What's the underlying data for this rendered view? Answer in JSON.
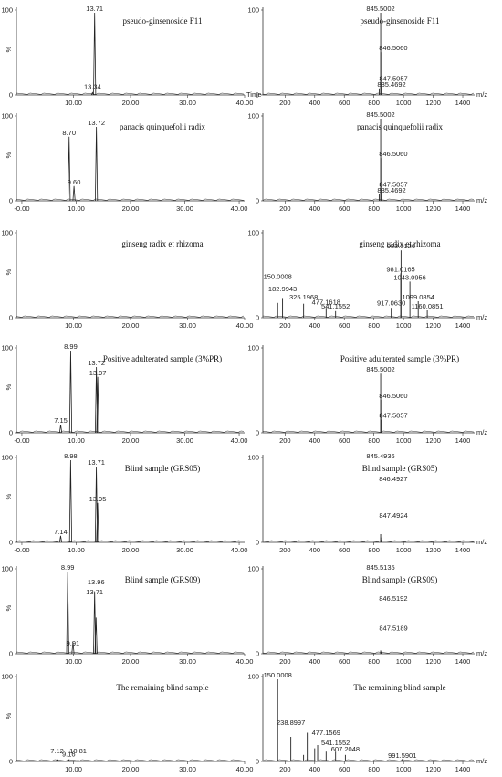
{
  "figure": {
    "chart_data": [
      {
        "type": "line",
        "row": 0,
        "side": "left",
        "title": "pseudo-ginsenoside F11",
        "xlabel": "Time",
        "ylabel": "%",
        "xlim": [
          0,
          40
        ],
        "ylim": [
          0,
          100
        ],
        "xticks": [
          "10.00",
          "20.00",
          "30.00",
          "40.00"
        ],
        "yticks": [
          "0",
          "100"
        ],
        "series": [
          {
            "x": [
              13.34,
              13.71
            ],
            "values": [
              3,
              100
            ]
          }
        ],
        "peak_labels": [
          {
            "x": 13.71,
            "y": 100,
            "text": "13.71"
          },
          {
            "x": 13.34,
            "y": 5,
            "text": "13.34"
          }
        ]
      },
      {
        "type": "bar",
        "row": 0,
        "side": "right",
        "title": "pseudo-ginsenoside F11",
        "xlabel": "m/z",
        "ylabel": "",
        "xlim": [
          50,
          1480
        ],
        "ylim": [
          0,
          100
        ],
        "xticks": [
          "200",
          "400",
          "600",
          "800",
          "1000",
          "1200",
          "1400"
        ],
        "yticks": [
          "0",
          "100"
        ],
        "series": [
          {
            "x": [
              835.4692,
              845.5002,
              846.506,
              847.5057
            ],
            "values": [
              8,
              100,
              52,
              15
            ]
          }
        ],
        "peak_labels": [
          {
            "x": 845.5002,
            "y": 100,
            "text": "845.5002"
          },
          {
            "x": 846.506,
            "y": 52,
            "text": "846.5060"
          },
          {
            "x": 847.5057,
            "y": 15,
            "text": "847.5057"
          },
          {
            "x": 835.4692,
            "y": 8,
            "text": "835.4692"
          }
        ]
      },
      {
        "type": "line",
        "row": 1,
        "side": "left",
        "title": "panacis quinquefolii radix",
        "xlabel": "",
        "ylabel": "%",
        "xlim": [
          -1,
          41
        ],
        "ylim": [
          0,
          100
        ],
        "xticks": [
          "-0.00",
          "10.00",
          "20.00",
          "30.00",
          "40.00"
        ],
        "yticks": [
          "0",
          "100"
        ],
        "series": [
          {
            "x": [
              8.7,
              9.6,
              13.72
            ],
            "values": [
              78,
              18,
              90
            ]
          }
        ],
        "peak_labels": [
          {
            "x": 8.7,
            "y": 78,
            "text": "8.70"
          },
          {
            "x": 13.72,
            "y": 90,
            "text": "13.72"
          },
          {
            "x": 9.6,
            "y": 18,
            "text": "9.60"
          }
        ]
      },
      {
        "type": "bar",
        "row": 1,
        "side": "right",
        "title": "panacis quinquefolii radix",
        "xlabel": "m/z",
        "ylabel": "",
        "xlim": [
          50,
          1480
        ],
        "ylim": [
          0,
          100
        ],
        "xticks": [
          "200",
          "400",
          "600",
          "800",
          "1000",
          "1200",
          "1400"
        ],
        "yticks": [
          "0",
          "100"
        ],
        "series": [
          {
            "x": [
              835.4692,
              845.5002,
              846.506,
              847.5057
            ],
            "values": [
              8,
              100,
              52,
              15
            ]
          }
        ],
        "peak_labels": [
          {
            "x": 845.5002,
            "y": 100,
            "text": "845.5002"
          },
          {
            "x": 846.506,
            "y": 52,
            "text": "846.5060"
          },
          {
            "x": 847.5057,
            "y": 15,
            "text": "847.5057"
          },
          {
            "x": 835.4692,
            "y": 8,
            "text": "835.4692"
          }
        ]
      },
      {
        "type": "line",
        "row": 2,
        "side": "left",
        "title": "ginseng radix et rhizoma",
        "xlabel": "",
        "ylabel": "%",
        "xlim": [
          0,
          40
        ],
        "ylim": [
          0,
          100
        ],
        "xticks": [
          "10.00",
          "20.00",
          "30.00",
          "40.00"
        ],
        "yticks": [
          "0",
          "100"
        ],
        "series": [
          {
            "x": [],
            "values": []
          }
        ],
        "peak_labels": []
      },
      {
        "type": "bar",
        "row": 2,
        "side": "right",
        "title": "ginseng radix et rhizoma",
        "xlabel": "m/z",
        "ylabel": "",
        "xlim": [
          50,
          1480
        ],
        "ylim": [
          0,
          100
        ],
        "xticks": [
          "200",
          "400",
          "600",
          "800",
          "1000",
          "1200",
          "1400"
        ],
        "yticks": [
          "0",
          "100"
        ],
        "series": [
          {
            "x": [
              150.0008,
              182.9943,
              325.1968,
              477.1618,
              541.1552,
              917.063,
              981.0165,
              983.0126,
              1043.0956,
              1099.0854,
              1160.0851
            ],
            "values": [
              18,
              24,
              17,
              12,
              8,
              12,
              54,
              82,
              44,
              20,
              9
            ]
          }
        ],
        "peak_labels": [
          {
            "x": 983.0126,
            "y": 82,
            "text": "983.0126"
          },
          {
            "x": 981.0165,
            "y": 54,
            "text": "981.0165"
          },
          {
            "x": 1043.0956,
            "y": 44,
            "text": "1043.0956"
          },
          {
            "x": 150.0008,
            "y": 45,
            "text": "150.0008"
          },
          {
            "x": 182.9943,
            "y": 30,
            "text": "182.9943"
          },
          {
            "x": 325.1968,
            "y": 20,
            "text": "325.1968"
          },
          {
            "x": 477.1618,
            "y": 14,
            "text": "477.1618"
          },
          {
            "x": 541.1552,
            "y": 9,
            "text": "541.1552"
          },
          {
            "x": 917.063,
            "y": 13,
            "text": "917.0630"
          },
          {
            "x": 1099.0854,
            "y": 20,
            "text": "1099.0854"
          },
          {
            "x": 1160.0851,
            "y": 9,
            "text": "1160.0851"
          }
        ]
      },
      {
        "type": "line",
        "row": 3,
        "side": "left",
        "title": "Positive adulterated sample (3%PR)",
        "xlabel": "",
        "ylabel": "%",
        "xlim": [
          -1,
          41
        ],
        "ylim": [
          0,
          100
        ],
        "xticks": [
          "-0.00",
          "10.00",
          "20.00",
          "30.00",
          "40.00"
        ],
        "yticks": [
          "0",
          "100"
        ],
        "series": [
          {
            "x": [
              7.15,
              8.99,
              13.72,
              13.97
            ],
            "values": [
              10,
              100,
              80,
              68
            ]
          }
        ],
        "peak_labels": [
          {
            "x": 8.99,
            "y": 100,
            "text": "8.99"
          },
          {
            "x": 13.72,
            "y": 80,
            "text": "13.72"
          },
          {
            "x": 13.97,
            "y": 68,
            "text": "13.97"
          },
          {
            "x": 7.15,
            "y": 10,
            "text": "7.15"
          }
        ]
      },
      {
        "type": "bar",
        "row": 3,
        "side": "right",
        "title": "Positive adulterated sample (3%PR)",
        "xlabel": "m/z",
        "ylabel": "",
        "xlim": [
          50,
          1480
        ],
        "ylim": [
          0,
          100
        ],
        "xticks": [
          "200",
          "400",
          "600",
          "800",
          "1000",
          "1200",
          "1400"
        ],
        "yticks": [
          "0",
          "100"
        ],
        "series": [
          {
            "x": [
              845.5002,
              846.506,
              847.5057
            ],
            "values": [
              72,
              40,
              16
            ]
          }
        ],
        "peak_labels": [
          {
            "x": 845.5002,
            "y": 72,
            "text": "845.5002"
          },
          {
            "x": 846.506,
            "y": 40,
            "text": "846.5060"
          },
          {
            "x": 847.5057,
            "y": 16,
            "text": "847.5057"
          }
        ]
      },
      {
        "type": "line",
        "row": 4,
        "side": "left",
        "title": "Blind sample (GRS05)",
        "xlabel": "",
        "ylabel": "%",
        "xlim": [
          -1,
          41
        ],
        "ylim": [
          0,
          100
        ],
        "xticks": [
          "-0.00",
          "10.00",
          "20.00",
          "30.00",
          "40.00"
        ],
        "yticks": [
          "0",
          "100"
        ],
        "series": [
          {
            "x": [
              7.14,
              8.98,
              13.71,
              13.95
            ],
            "values": [
              8,
              100,
              92,
              48
            ]
          }
        ],
        "peak_labels": [
          {
            "x": 8.98,
            "y": 100,
            "text": "8.98"
          },
          {
            "x": 13.71,
            "y": 92,
            "text": "13.71"
          },
          {
            "x": 13.95,
            "y": 48,
            "text": "13.95"
          },
          {
            "x": 7.14,
            "y": 8,
            "text": "7.14"
          }
        ]
      },
      {
        "type": "bar",
        "row": 4,
        "side": "right",
        "title": "Blind sample (GRS05)",
        "xlabel": "m/z",
        "ylabel": "",
        "xlim": [
          50,
          1480
        ],
        "ylim": [
          0,
          100
        ],
        "xticks": [
          "200",
          "400",
          "600",
          "800",
          "1000",
          "1200",
          "1400"
        ],
        "yticks": [
          "0",
          "100"
        ],
        "series": [
          {
            "x": [
              845.4936,
              846.4927,
              847.4924
            ],
            "values": [
              10,
              6,
              3
            ]
          }
        ],
        "peak_labels": [
          {
            "x": 845.4936,
            "y": 100,
            "text": "845.4936"
          },
          {
            "x": 846.4927,
            "y": 72,
            "text": "846.4927"
          },
          {
            "x": 847.4924,
            "y": 28,
            "text": "847.4924"
          }
        ]
      },
      {
        "type": "line",
        "row": 5,
        "side": "left",
        "title": "Blind sample (GRS09)",
        "xlabel": "",
        "ylabel": "%",
        "xlim": [
          0,
          40
        ],
        "ylim": [
          0,
          100
        ],
        "xticks": [
          "10.00",
          "20.00",
          "30.00",
          "40.00"
        ],
        "yticks": [
          "0",
          "100"
        ],
        "series": [
          {
            "x": [
              8.99,
              9.91,
              13.71,
              13.96
            ],
            "values": [
              100,
              14,
              76,
              44
            ]
          }
        ],
        "peak_labels": [
          {
            "x": 8.99,
            "y": 100,
            "text": "8.99"
          },
          {
            "x": 13.96,
            "y": 82,
            "text": "13.96"
          },
          {
            "x": 13.71,
            "y": 70,
            "text": "13.71"
          },
          {
            "x": 9.91,
            "y": 8,
            "text": "9.91"
          }
        ]
      },
      {
        "type": "bar",
        "row": 5,
        "side": "right",
        "title": "Blind sample (GRS09)",
        "xlabel": "m/z",
        "ylabel": "",
        "xlim": [
          50,
          1480
        ],
        "ylim": [
          0,
          100
        ],
        "xticks": [
          "200",
          "400",
          "600",
          "800",
          "1000",
          "1200",
          "1400"
        ],
        "yticks": [
          "0",
          "100"
        ],
        "series": [
          {
            "x": [
              845.5135,
              846.5192,
              847.5189
            ],
            "values": [
              4,
              3,
              2
            ]
          }
        ],
        "peak_labels": [
          {
            "x": 845.5135,
            "y": 100,
            "text": "845.5135"
          },
          {
            "x": 846.5192,
            "y": 62,
            "text": "846.5192"
          },
          {
            "x": 847.5189,
            "y": 26,
            "text": "847.5189"
          }
        ]
      },
      {
        "type": "line",
        "row": 6,
        "side": "left",
        "title": "The remaining blind sample",
        "xlabel": "",
        "ylabel": "%",
        "xlim": [
          0,
          40
        ],
        "ylim": [
          0,
          100
        ],
        "xticks": [
          "10.00",
          "20.00",
          "30.00",
          "40.00"
        ],
        "yticks": [
          "0",
          "100"
        ],
        "series": [
          {
            "x": [
              7.12,
              9.16,
              10.81
            ],
            "values": [
              2,
              2,
              2
            ]
          }
        ],
        "peak_labels": [
          {
            "x": 7.12,
            "y": 8,
            "text": "7.12"
          },
          {
            "x": 9.16,
            "y": 4,
            "text": "9.16"
          },
          {
            "x": 10.81,
            "y": 8,
            "text": "10.81"
          }
        ]
      },
      {
        "type": "bar",
        "row": 6,
        "side": "right",
        "title": "The remaining blind sample",
        "xlabel": "m/z",
        "ylabel": "",
        "xlim": [
          50,
          1480
        ],
        "ylim": [
          0,
          100
        ],
        "xticks": [
          "200",
          "400",
          "600",
          "800",
          "1000",
          "1200",
          "1400"
        ],
        "yticks": [
          "0",
          "100"
        ],
        "series": [
          {
            "x": [
              150.0008,
              238.8997,
              325,
              350,
              400,
              420,
              477.1569,
              541.1552,
              607.2048,
              991.5901
            ],
            "values": [
              100,
              30,
              8,
              35,
              16,
              20,
              12,
              12,
              8,
              3
            ]
          }
        ],
        "peak_labels": [
          {
            "x": 150.0008,
            "y": 100,
            "text": "150.0008"
          },
          {
            "x": 238.8997,
            "y": 42,
            "text": "238.8997"
          },
          {
            "x": 477.1569,
            "y": 30,
            "text": "477.1569"
          },
          {
            "x": 541.1552,
            "y": 18,
            "text": "541.1552"
          },
          {
            "x": 607.2048,
            "y": 10,
            "text": "607.2048"
          },
          {
            "x": 991.5901,
            "y": 2,
            "text": "991.5901"
          }
        ]
      }
    ]
  },
  "colors": {
    "trace": "#222222",
    "axis": "#333333",
    "text": "#111111"
  }
}
